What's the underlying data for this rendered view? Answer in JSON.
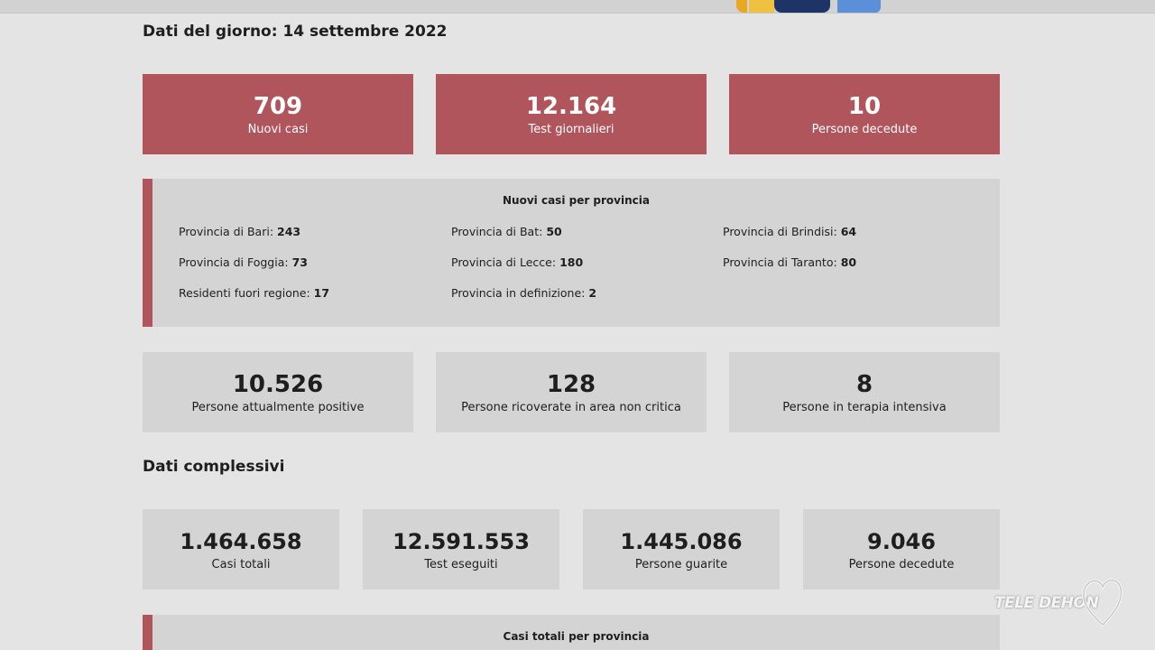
{
  "day_section": {
    "title": "Dati del giorno: 14 settembre 2022",
    "highlight_cards": [
      {
        "value": "709",
        "label": "Nuovi casi"
      },
      {
        "value": "12.164",
        "label": "Test giornalieri"
      },
      {
        "value": "10",
        "label": "Persone decedute"
      }
    ],
    "provinces": {
      "title": "Nuovi casi per provincia",
      "items": [
        {
          "label": "Provincia di Bari:",
          "value": "243"
        },
        {
          "label": "Provincia di Bat:",
          "value": "50"
        },
        {
          "label": "Provincia di Brindisi:",
          "value": "64"
        },
        {
          "label": "Provincia di Foggia:",
          "value": "73"
        },
        {
          "label": "Provincia di Lecce:",
          "value": "180"
        },
        {
          "label": "Provincia di Taranto:",
          "value": "80"
        },
        {
          "label": "Residenti fuori regione:",
          "value": "17"
        },
        {
          "label": "Provincia in definizione:",
          "value": "2"
        }
      ]
    },
    "status_cards": [
      {
        "value": "10.526",
        "label": "Persone attualmente positive"
      },
      {
        "value": "128",
        "label": "Persone ricoverate in area non critica"
      },
      {
        "value": "8",
        "label": "Persone in terapia intensiva"
      }
    ]
  },
  "total_section": {
    "title": "Dati complessivi",
    "cards": [
      {
        "value": "1.464.658",
        "label": "Casi totali"
      },
      {
        "value": "12.591.553",
        "label": "Test eseguiti"
      },
      {
        "value": "1.445.086",
        "label": "Persone guarite"
      },
      {
        "value": "9.046",
        "label": "Persone decedute"
      }
    ],
    "provinces_title": "Casi totali per provincia"
  },
  "watermark": {
    "text": "TELE DEHON"
  },
  "colors": {
    "accent_red": "#b0555b",
    "card_grey": "#d4d4d4",
    "background": "#e4e4e4"
  }
}
